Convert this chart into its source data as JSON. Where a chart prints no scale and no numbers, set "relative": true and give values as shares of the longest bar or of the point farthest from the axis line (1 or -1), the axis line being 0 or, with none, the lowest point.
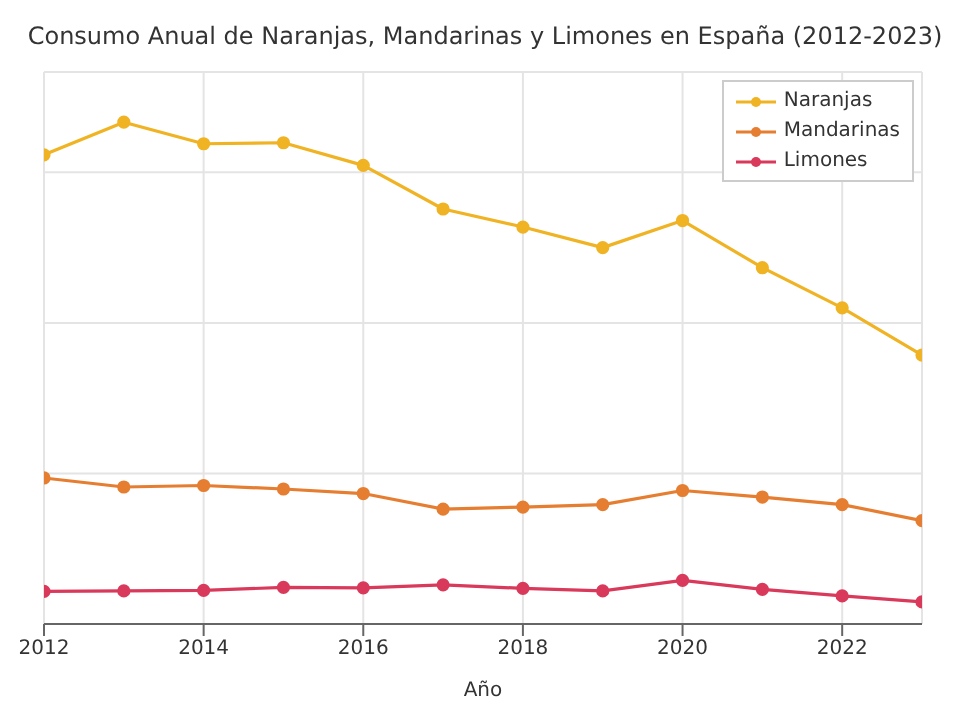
{
  "chart_data": {
    "type": "line",
    "title": "Consumo Anual de Naranjas, Mandarinas y Limones en España (2012-2023)",
    "xlabel": "Año",
    "relative": true,
    "x": [
      2012,
      2013,
      2014,
      2015,
      2016,
      2017,
      2018,
      2019,
      2020,
      2021,
      2022,
      2023
    ],
    "xlim": [
      2012,
      2023
    ],
    "xticks": [
      2012,
      2014,
      2016,
      2018,
      2020,
      2022
    ],
    "series": [
      {
        "name": "Naranjas",
        "color": "#f0b323",
        "values": [
          0.935,
          1,
          0.957,
          0.959,
          0.914,
          0.827,
          0.791,
          0.75,
          0.804,
          0.71,
          0.63,
          0.536
        ]
      },
      {
        "name": "Mandarinas",
        "color": "#e67e32",
        "values": [
          0.291,
          0.273,
          0.276,
          0.269,
          0.26,
          0.229,
          0.233,
          0.238,
          0.266,
          0.253,
          0.238,
          0.206
        ]
      },
      {
        "name": "Limones",
        "color": "#d9395a",
        "values": [
          0.065,
          0.066,
          0.067,
          0.073,
          0.072,
          0.078,
          0.071,
          0.066,
          0.087,
          0.069,
          0.056,
          0.044
        ]
      }
    ],
    "grid": true,
    "legend": "top right",
    "marker": "circle",
    "line_style": "solid"
  }
}
